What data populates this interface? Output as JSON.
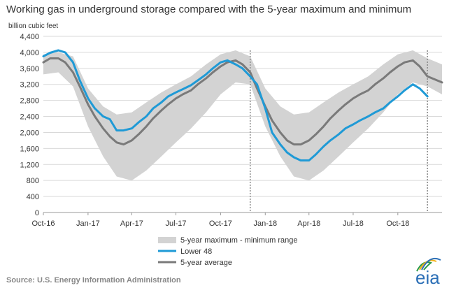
{
  "title": "Working gas in underground storage compared with the 5-year maximum and minimum",
  "unit_label": "billion cubic feet",
  "source": "Source:  U.S. Energy Information Administration",
  "logo": {
    "text": "eia",
    "icon": "eia-logo-icon"
  },
  "legend": {
    "range": "5-year maximum - minimum range",
    "lower48": "Lower 48",
    "average": "5-year average"
  },
  "colors": {
    "range": "#d3d3d3",
    "lower48": "#1f9ad6",
    "average": "#7a7a7a",
    "grid": "#d9d9d9",
    "divider": "#8a8a8a"
  },
  "chart_data": {
    "type": "line",
    "title": "Working gas in underground storage compared with the 5-year maximum and minimum",
    "ylabel": "billion cubic feet",
    "ylim": [
      0,
      4400
    ],
    "yticks": [
      0,
      400,
      800,
      1200,
      1600,
      2000,
      2400,
      2800,
      3200,
      3600,
      4000,
      4400
    ],
    "xlim": [
      "2016-10-01",
      "2018-12-31"
    ],
    "xtick_labels": [
      {
        "date": "2016-10-01",
        "label": "Oct-16"
      },
      {
        "date": "2017-01-01",
        "label": "Jan-17"
      },
      {
        "date": "2017-04-01",
        "label": "Apr-17"
      },
      {
        "date": "2017-07-01",
        "label": "Jul-17"
      },
      {
        "date": "2017-10-01",
        "label": "Oct-17"
      },
      {
        "date": "2018-01-01",
        "label": "Jan-18"
      },
      {
        "date": "2018-04-01",
        "label": "Apr-18"
      },
      {
        "date": "2018-07-01",
        "label": "Jul-18"
      },
      {
        "date": "2018-10-01",
        "label": "Oct-18"
      }
    ],
    "grid": true,
    "legend_position": "bottom",
    "vertical_markers": [
      "2017-12-01",
      "2018-12-01"
    ],
    "range_band": {
      "name": "5-year maximum - minimum range",
      "x": [
        "2016-10-01",
        "2016-11-01",
        "2016-12-01",
        "2017-01-01",
        "2017-02-01",
        "2017-03-01",
        "2017-04-01",
        "2017-05-01",
        "2017-06-01",
        "2017-07-01",
        "2017-08-01",
        "2017-09-01",
        "2017-10-01",
        "2017-11-01",
        "2017-12-01",
        "2018-01-01",
        "2018-02-01",
        "2018-03-01",
        "2018-04-01",
        "2018-05-01",
        "2018-06-01",
        "2018-07-01",
        "2018-08-01",
        "2018-09-01",
        "2018-10-01",
        "2018-11-01",
        "2018-12-01",
        "2018-12-31"
      ],
      "max": [
        3950,
        4000,
        3900,
        3100,
        2650,
        2450,
        2500,
        2750,
        3000,
        3200,
        3400,
        3700,
        3950,
        4050,
        3900,
        3100,
        2650,
        2450,
        2500,
        2750,
        3000,
        3200,
        3400,
        3700,
        3950,
        4050,
        3850,
        3700
      ],
      "min": [
        3450,
        3500,
        3150,
        2150,
        1400,
        900,
        800,
        1050,
        1400,
        1750,
        2100,
        2500,
        2950,
        3250,
        3200,
        2150,
        1400,
        900,
        800,
        1050,
        1400,
        1750,
        2100,
        2500,
        2950,
        3250,
        3150,
        2950
      ]
    },
    "series": [
      {
        "name": "Lower 48",
        "x": [
          "2016-10-01",
          "2016-10-15",
          "2016-11-01",
          "2016-11-15",
          "2016-12-01",
          "2016-12-15",
          "2017-01-01",
          "2017-01-15",
          "2017-02-01",
          "2017-02-15",
          "2017-03-01",
          "2017-03-15",
          "2017-04-01",
          "2017-04-15",
          "2017-05-01",
          "2017-05-15",
          "2017-06-01",
          "2017-06-15",
          "2017-07-01",
          "2017-07-15",
          "2017-08-01",
          "2017-08-15",
          "2017-09-01",
          "2017-09-15",
          "2017-10-01",
          "2017-10-15",
          "2017-11-01",
          "2017-11-15",
          "2017-12-01",
          "2017-12-15",
          "2018-01-01",
          "2018-01-15",
          "2018-02-01",
          "2018-02-15",
          "2018-03-01",
          "2018-03-15",
          "2018-04-01",
          "2018-04-15",
          "2018-05-01",
          "2018-05-15",
          "2018-06-01",
          "2018-06-15",
          "2018-07-01",
          "2018-07-15",
          "2018-08-01",
          "2018-08-15",
          "2018-09-01",
          "2018-09-15",
          "2018-10-01",
          "2018-10-15",
          "2018-11-01",
          "2018-11-15",
          "2018-12-01"
        ],
        "values": [
          3900,
          3990,
          4050,
          4000,
          3750,
          3300,
          2850,
          2600,
          2400,
          2330,
          2050,
          2050,
          2100,
          2250,
          2400,
          2600,
          2750,
          2900,
          3000,
          3080,
          3180,
          3300,
          3450,
          3600,
          3750,
          3800,
          3700,
          3600,
          3400,
          3200,
          2600,
          2000,
          1700,
          1500,
          1380,
          1300,
          1300,
          1450,
          1650,
          1800,
          1950,
          2100,
          2200,
          2300,
          2400,
          2500,
          2600,
          2750,
          2900,
          3050,
          3200,
          3100,
          2900
        ]
      },
      {
        "name": "5-year average",
        "x": [
          "2016-10-01",
          "2016-10-15",
          "2016-11-01",
          "2016-11-15",
          "2016-12-01",
          "2016-12-15",
          "2017-01-01",
          "2017-01-15",
          "2017-02-01",
          "2017-02-15",
          "2017-03-01",
          "2017-03-15",
          "2017-04-01",
          "2017-04-15",
          "2017-05-01",
          "2017-05-15",
          "2017-06-01",
          "2017-06-15",
          "2017-07-01",
          "2017-07-15",
          "2017-08-01",
          "2017-08-15",
          "2017-09-01",
          "2017-09-15",
          "2017-10-01",
          "2017-10-15",
          "2017-11-01",
          "2017-11-15",
          "2017-12-01",
          "2017-12-15",
          "2018-01-01",
          "2018-01-15",
          "2018-02-01",
          "2018-02-15",
          "2018-03-01",
          "2018-03-15",
          "2018-04-01",
          "2018-04-15",
          "2018-05-01",
          "2018-05-15",
          "2018-06-01",
          "2018-06-15",
          "2018-07-01",
          "2018-07-15",
          "2018-08-01",
          "2018-08-15",
          "2018-09-01",
          "2018-09-15",
          "2018-10-01",
          "2018-10-15",
          "2018-11-01",
          "2018-11-15",
          "2018-12-01",
          "2018-12-31"
        ],
        "values": [
          3750,
          3850,
          3850,
          3750,
          3500,
          3150,
          2700,
          2400,
          2100,
          1900,
          1750,
          1700,
          1800,
          1950,
          2150,
          2350,
          2550,
          2700,
          2850,
          2950,
          3050,
          3200,
          3350,
          3500,
          3650,
          3750,
          3800,
          3700,
          3500,
          3100,
          2650,
          2300,
          2000,
          1800,
          1700,
          1700,
          1800,
          1950,
          2150,
          2350,
          2550,
          2700,
          2850,
          2950,
          3050,
          3200,
          3350,
          3500,
          3650,
          3750,
          3800,
          3650,
          3400,
          3250
        ]
      }
    ]
  }
}
